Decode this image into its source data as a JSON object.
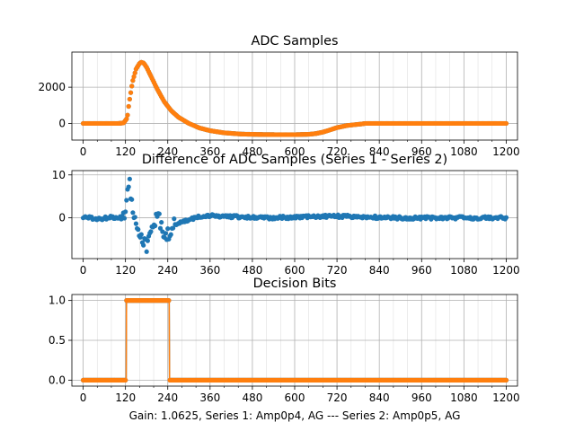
{
  "figure_caption": "Gain: 1.0625, Series 1: Amp0p4, AG --- Series 2: Amp0p5, AG",
  "colors": {
    "series_blue": "#1f77b4",
    "series_orange": "#ff7f0e",
    "grid": "#b0b0b0"
  },
  "chart_data": [
    {
      "type": "scatter",
      "title": "ADC Samples",
      "xlabel": "",
      "ylabel": "",
      "xlim": [
        -32,
        1232
      ],
      "ylim": [
        -920,
        3940
      ],
      "x_ticks": [
        0,
        120,
        240,
        360,
        480,
        600,
        720,
        840,
        960,
        1080,
        1200
      ],
      "y_ticks": [
        0,
        2000
      ],
      "x_tick_labels": [
        "0",
        "120",
        "240",
        "360",
        "480",
        "600",
        "720",
        "840",
        "960",
        "1080",
        "1200"
      ],
      "y_tick_labels": [
        "0",
        "2000"
      ],
      "grid": true,
      "series": [
        {
          "name": "Series 1",
          "color": "#1f77b4",
          "points": [
            [
              0,
              0
            ],
            [
              100,
              0
            ],
            [
              115,
              30
            ],
            [
              125,
              300
            ],
            [
              130,
              1100
            ],
            [
              140,
              2300
            ],
            [
              150,
              3000
            ],
            [
              160,
              3320
            ],
            [
              165,
              3380
            ],
            [
              172,
              3330
            ],
            [
              180,
              3100
            ],
            [
              195,
              2500
            ],
            [
              210,
              1900
            ],
            [
              230,
              1200
            ],
            [
              250,
              700
            ],
            [
              270,
              350
            ],
            [
              300,
              0
            ],
            [
              330,
              -250
            ],
            [
              360,
              -400
            ],
            [
              400,
              -520
            ],
            [
              450,
              -590
            ],
            [
              500,
              -610
            ],
            [
              550,
              -620
            ],
            [
              600,
              -620
            ],
            [
              640,
              -600
            ],
            [
              660,
              -560
            ],
            [
              680,
              -480
            ],
            [
              700,
              -360
            ],
            [
              720,
              -230
            ],
            [
              750,
              -110
            ],
            [
              790,
              -30
            ],
            [
              800,
              0
            ],
            [
              900,
              0
            ],
            [
              1000,
              0
            ],
            [
              1100,
              0
            ],
            [
              1200,
              0
            ]
          ]
        },
        {
          "name": "Series 2",
          "color": "#ff7f0e",
          "points": [
            [
              0,
              0
            ],
            [
              100,
              0
            ],
            [
              115,
              30
            ],
            [
              125,
              300
            ],
            [
              130,
              1100
            ],
            [
              140,
              2300
            ],
            [
              150,
              3000
            ],
            [
              160,
              3320
            ],
            [
              165,
              3380
            ],
            [
              172,
              3330
            ],
            [
              180,
              3100
            ],
            [
              195,
              2500
            ],
            [
              210,
              1900
            ],
            [
              230,
              1200
            ],
            [
              250,
              700
            ],
            [
              270,
              350
            ],
            [
              300,
              0
            ],
            [
              330,
              -250
            ],
            [
              360,
              -400
            ],
            [
              400,
              -520
            ],
            [
              450,
              -590
            ],
            [
              500,
              -610
            ],
            [
              550,
              -620
            ],
            [
              600,
              -620
            ],
            [
              640,
              -600
            ],
            [
              660,
              -560
            ],
            [
              680,
              -480
            ],
            [
              700,
              -360
            ],
            [
              720,
              -230
            ],
            [
              750,
              -110
            ],
            [
              790,
              -30
            ],
            [
              800,
              0
            ],
            [
              900,
              0
            ],
            [
              1000,
              0
            ],
            [
              1100,
              0
            ],
            [
              1200,
              0
            ]
          ]
        }
      ]
    },
    {
      "type": "scatter",
      "title": "Difference of ADC Samples (Series 1 - Series 2)",
      "xlabel": "",
      "ylabel": "",
      "xlim": [
        -32,
        1232
      ],
      "ylim": [
        -9.5,
        11
      ],
      "x_ticks": [
        0,
        120,
        240,
        360,
        480,
        600,
        720,
        840,
        960,
        1080,
        1200
      ],
      "y_ticks": [
        0,
        10
      ],
      "x_tick_labels": [
        "0",
        "120",
        "240",
        "360",
        "480",
        "600",
        "720",
        "840",
        "960",
        "1080",
        "1200"
      ],
      "y_tick_labels": [
        "0",
        "10"
      ],
      "grid": true,
      "series": [
        {
          "name": "Difference",
          "color": "#1f77b4",
          "points": [
            [
              0,
              0.2
            ],
            [
              40,
              -0.3
            ],
            [
              80,
              0.1
            ],
            [
              110,
              0
            ],
            [
              120,
              2
            ],
            [
              125,
              5
            ],
            [
              130,
              9
            ],
            [
              135,
              6
            ],
            [
              140,
              3
            ],
            [
              150,
              -1
            ],
            [
              160,
              -3
            ],
            [
              170,
              -5
            ],
            [
              180,
              -7
            ],
            [
              190,
              -4
            ],
            [
              200,
              -2
            ],
            [
              210,
              1.5
            ],
            [
              215,
              2
            ],
            [
              220,
              -2
            ],
            [
              230,
              -5
            ],
            [
              240,
              -4
            ],
            [
              260,
              -1.5
            ],
            [
              300,
              -0.5
            ],
            [
              340,
              0.5
            ],
            [
              380,
              0.4
            ],
            [
              450,
              0.2
            ],
            [
              500,
              0
            ],
            [
              600,
              0.1
            ],
            [
              700,
              0.4
            ],
            [
              800,
              0.2
            ],
            [
              900,
              0
            ],
            [
              1000,
              0
            ],
            [
              1100,
              0
            ],
            [
              1200,
              0
            ]
          ]
        }
      ]
    },
    {
      "type": "line",
      "title": "Decision Bits",
      "xlabel": "Gain: 1.0625, Series 1: Amp0p4, AG --- Series 2: Amp0p5, AG",
      "ylabel": "",
      "xlim": [
        -32,
        1232
      ],
      "ylim": [
        -0.075,
        1.075
      ],
      "x_ticks": [
        0,
        120,
        240,
        360,
        480,
        600,
        720,
        840,
        960,
        1080,
        1200
      ],
      "y_ticks": [
        0.0,
        0.5,
        1.0
      ],
      "x_tick_labels": [
        "0",
        "120",
        "240",
        "360",
        "480",
        "600",
        "720",
        "840",
        "960",
        "1080",
        "1200"
      ],
      "y_tick_labels": [
        "0.0",
        "0.5",
        "1.0"
      ],
      "grid": true,
      "series": [
        {
          "name": "Series 1",
          "color": "#1f77b4",
          "points": [
            [
              0,
              0
            ],
            [
              122,
              0
            ],
            [
              123,
              1
            ],
            [
              244,
              1
            ],
            [
              245,
              0
            ],
            [
              1200,
              0
            ]
          ]
        },
        {
          "name": "Series 2",
          "color": "#ff7f0e",
          "points": [
            [
              0,
              0
            ],
            [
              122,
              0
            ],
            [
              123,
              1
            ],
            [
              244,
              1
            ],
            [
              245,
              0
            ],
            [
              1200,
              0
            ]
          ]
        }
      ]
    }
  ]
}
